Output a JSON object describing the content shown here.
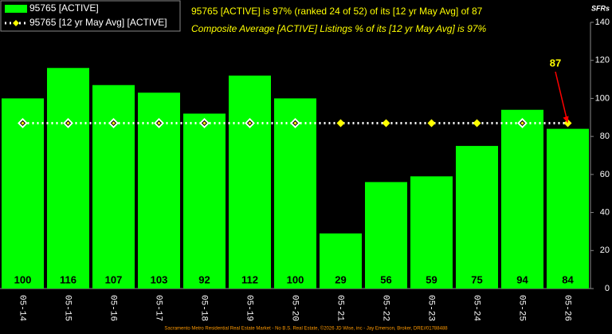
{
  "chart_data": {
    "type": "bar",
    "title": "95765 [ACTIVE] is 97% (ranked 24 of 52) of its [12 yr May Avg] of 87",
    "subtitle": "Composite Average [ACTIVE] Listings % of its [12 yr May Avg] is 97%",
    "y_label": "SFRs",
    "footer": "Sacramento Metro Residential Real Estate Market - No B.S. Real Estate, ©2026 JD Wise, inc - Jay Emerson, Broker, DRE#01788488",
    "annotation": "87",
    "categories": [
      "05-14",
      "05-15",
      "05-16",
      "05-17",
      "05-18",
      "05-19",
      "05-20",
      "05-21",
      "05-22",
      "05-23",
      "05-24",
      "05-25",
      "05-26"
    ],
    "series": [
      {
        "name": "95765 [ACTIVE]",
        "color": "#00ff00",
        "values": [
          100,
          116,
          107,
          103,
          92,
          112,
          100,
          29,
          56,
          59,
          75,
          94,
          84
        ]
      },
      {
        "name": "95765 [12 yr May Avg] [ACTIVE]",
        "color": "#ffffff",
        "values": [
          87,
          87,
          87,
          87,
          87,
          87,
          87,
          87,
          87,
          87,
          87,
          87,
          87
        ]
      }
    ],
    "ylim": [
      0,
      140
    ],
    "yticks": [
      0,
      20,
      40,
      60,
      80,
      100,
      120,
      140
    ]
  }
}
